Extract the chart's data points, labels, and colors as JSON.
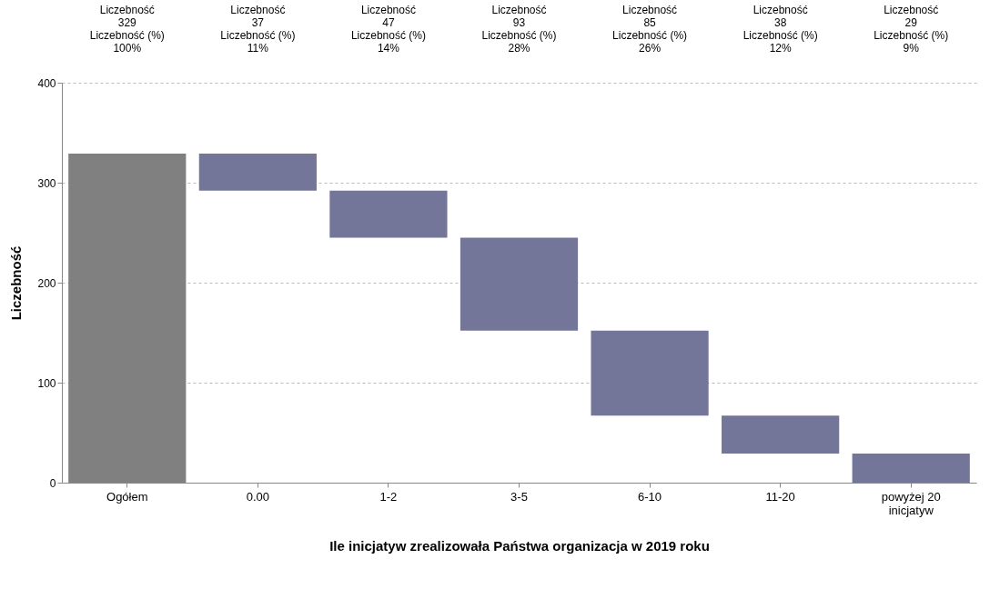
{
  "chart_data": {
    "type": "bar",
    "xlabel": "Ile inicjatyw zrealizowała Państwa organizacja w 2019 roku",
    "ylabel": "Liczebność",
    "categories": [
      "Ogółem",
      "0.00",
      "1-2",
      "3-5",
      "6-10",
      "11-20",
      "powyżej 20 inicjatyw"
    ],
    "values": [
      329,
      37,
      47,
      93,
      85,
      38,
      29
    ],
    "base": [
      0,
      292,
      245,
      152,
      67,
      29,
      0
    ],
    "colors": [
      "#808080",
      "#737599",
      "#737599",
      "#737599",
      "#737599",
      "#737599",
      "#737599"
    ],
    "value_labels": [
      "Liczebność\n329\nLiczebność (%)\n100%",
      "Liczebność\n37\nLiczebność (%)\n11%",
      "Liczebność\n47\nLiczebność (%)\n14%",
      "Liczebność\n93\nLiczebność (%)\n28%",
      "Liczebność\n85\nLiczebność (%)\n26%",
      "Liczebność\n38\nLiczebność (%)\n12%",
      "Liczebność\n29\nLiczebność (%)\n9%"
    ],
    "ylim": [
      0,
      400
    ],
    "yticks": [
      0,
      100,
      200,
      300,
      400
    ],
    "grid": "y"
  }
}
